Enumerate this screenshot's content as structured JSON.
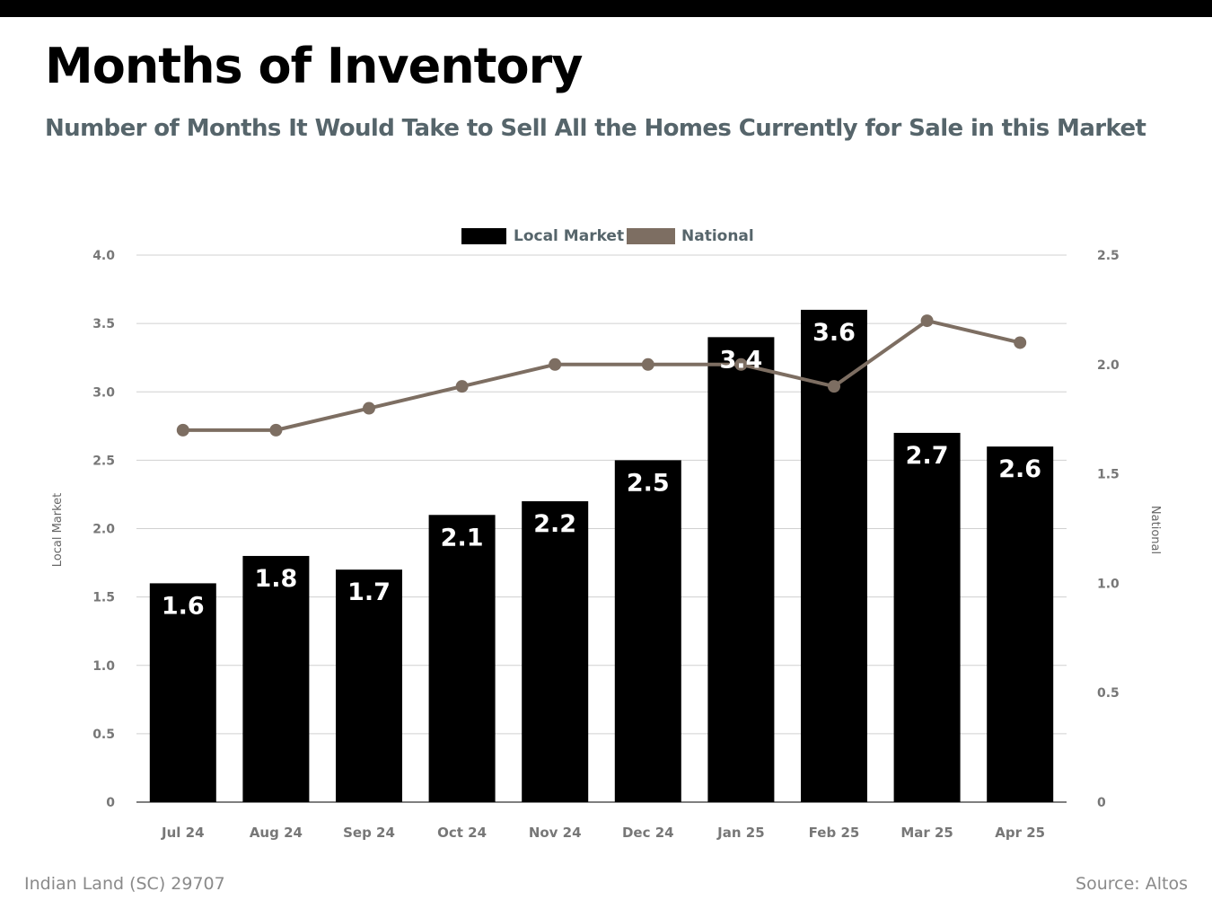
{
  "header": {
    "title": "Months of Inventory",
    "subtitle": "Number of Months It Would Take to Sell All the Homes Currently for Sale in this Market"
  },
  "footer": {
    "location": "Indian Land (SC) 29707",
    "source": "Source: Altos"
  },
  "colors": {
    "local": "#000000",
    "national": "#7d6e62",
    "grid": "#d0d0d0",
    "tick_text": "#777777"
  },
  "chart_data": {
    "type": "bar",
    "categories": [
      "Jul 24",
      "Aug 24",
      "Sep 24",
      "Oct 24",
      "Nov 24",
      "Dec 24",
      "Jan 25",
      "Feb 25",
      "Mar 25",
      "Apr 25"
    ],
    "series": [
      {
        "name": "Local Market",
        "type": "bar",
        "axis": "left",
        "values": [
          1.6,
          1.8,
          1.7,
          2.1,
          2.2,
          2.5,
          3.4,
          3.6,
          2.7,
          2.6
        ]
      },
      {
        "name": "National",
        "type": "line",
        "axis": "right",
        "values": [
          1.7,
          1.7,
          1.8,
          1.9,
          2.0,
          2.0,
          2.0,
          1.9,
          2.2,
          2.1
        ]
      }
    ],
    "y_left": {
      "label": "Local Market",
      "range": [
        0,
        4.0
      ],
      "ticks": [
        "0",
        "0.5",
        "1.0",
        "1.5",
        "2.0",
        "2.5",
        "3.0",
        "3.5",
        "4.0"
      ]
    },
    "y_right": {
      "label": "National",
      "range": [
        0,
        2.5
      ],
      "ticks": [
        "0",
        "0.5",
        "1.0",
        "1.5",
        "2.0",
        "2.5"
      ]
    },
    "bar_labels": [
      "1.6",
      "1.8",
      "1.7",
      "2.1",
      "2.2",
      "2.5",
      "3.4",
      "3.6",
      "2.7",
      "2.6"
    ],
    "legend_position": "top-center",
    "grid": true
  }
}
